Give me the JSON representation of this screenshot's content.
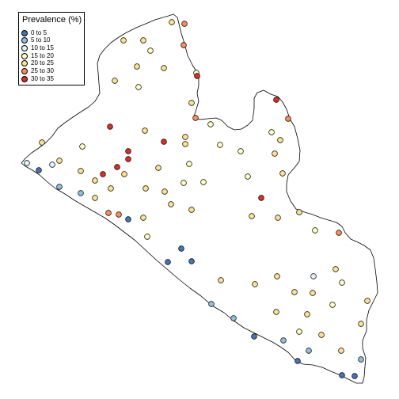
{
  "legend": {
    "title": "Prevalence (%)",
    "classes": [
      {
        "label": "0 to 5",
        "color": "#4575b4"
      },
      {
        "label": "5 to 10",
        "color": "#91bfdb"
      },
      {
        "label": "10 to 15",
        "color": "#e0f3f8"
      },
      {
        "label": "15 to 20",
        "color": "#ffffbf"
      },
      {
        "label": "20 to 25",
        "color": "#fee090"
      },
      {
        "label": "25 to 30",
        "color": "#fc8d59"
      },
      {
        "label": "30 to 35",
        "color": "#d73027"
      }
    ]
  },
  "map": {
    "country": "Liberia",
    "points_count": 95
  }
}
